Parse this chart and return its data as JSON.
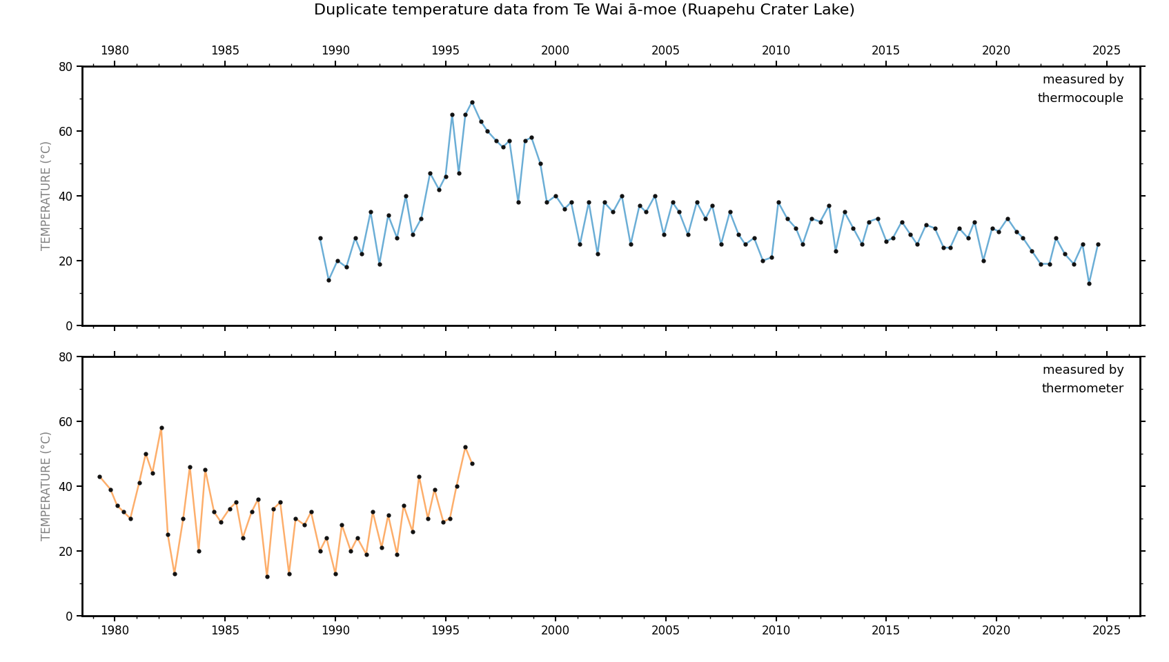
{
  "title": "Duplicate temperature data from Te Wai ā-moe (Ruapehu Crater Lake)",
  "ylabel": "TEMPERATURE (°C)",
  "ylim": [
    0,
    80
  ],
  "yticks": [
    0,
    20,
    40,
    60,
    80
  ],
  "xlim": [
    1978.5,
    2026.5
  ],
  "xticks": [
    1980,
    1985,
    1990,
    1995,
    2000,
    2005,
    2010,
    2015,
    2020,
    2025
  ],
  "tc_color": "#6baed6",
  "th_color": "#fdae6b",
  "dot_color": "#111111",
  "line_width": 1.8,
  "label_tc": "measured by\nthermocouple",
  "label_th": "measured by\nthermometer",
  "tc_years": [
    1989.3,
    1989.7,
    1990.1,
    1990.5,
    1990.9,
    1991.2,
    1991.6,
    1992.0,
    1992.4,
    1992.8,
    1993.2,
    1993.5,
    1993.9,
    1994.3,
    1994.7,
    1995.0,
    1995.3,
    1995.6,
    1995.9,
    1996.2,
    1996.6,
    1996.9,
    1997.3,
    1997.6,
    1997.9,
    1998.3,
    1998.6,
    1998.9,
    1999.3,
    1999.6,
    2000.0,
    2000.4,
    2000.7,
    2001.1,
    2001.5,
    2001.9,
    2002.2,
    2002.6,
    2003.0,
    2003.4,
    2003.8,
    2004.1,
    2004.5,
    2004.9,
    2005.3,
    2005.6,
    2006.0,
    2006.4,
    2006.8,
    2007.1,
    2007.5,
    2007.9,
    2008.3,
    2008.6,
    2009.0,
    2009.4,
    2009.8,
    2010.1,
    2010.5,
    2010.9,
    2011.2,
    2011.6,
    2012.0,
    2012.4,
    2012.7,
    2013.1,
    2013.5,
    2013.9,
    2014.2,
    2014.6,
    2015.0,
    2015.3,
    2015.7,
    2016.1,
    2016.4,
    2016.8,
    2017.2,
    2017.6,
    2017.9,
    2018.3,
    2018.7,
    2019.0,
    2019.4,
    2019.8,
    2020.1,
    2020.5,
    2020.9,
    2021.2,
    2021.6,
    2022.0,
    2022.4,
    2022.7,
    2023.1,
    2023.5,
    2023.9,
    2024.2,
    2024.6
  ],
  "tc_temps": [
    27,
    14,
    20,
    18,
    27,
    22,
    35,
    19,
    34,
    27,
    40,
    28,
    33,
    47,
    42,
    46,
    65,
    47,
    65,
    69,
    63,
    60,
    57,
    55,
    57,
    38,
    57,
    58,
    50,
    38,
    40,
    36,
    38,
    25,
    38,
    22,
    38,
    35,
    40,
    25,
    37,
    35,
    40,
    28,
    38,
    35,
    28,
    38,
    33,
    37,
    25,
    35,
    28,
    25,
    27,
    20,
    21,
    38,
    33,
    30,
    25,
    33,
    32,
    37,
    23,
    35,
    30,
    25,
    32,
    33,
    26,
    27,
    32,
    28,
    25,
    31,
    30,
    24,
    24,
    30,
    27,
    32,
    20,
    30,
    29,
    33,
    29,
    27,
    23,
    19,
    19,
    27,
    22,
    19,
    25,
    13,
    25
  ],
  "th_years": [
    1979.3,
    1979.8,
    1980.1,
    1980.4,
    1980.7,
    1981.1,
    1981.4,
    1981.7,
    1982.1,
    1982.4,
    1982.7,
    1983.1,
    1983.4,
    1983.8,
    1984.1,
    1984.5,
    1984.8,
    1985.2,
    1985.5,
    1985.8,
    1986.2,
    1986.5,
    1986.9,
    1987.2,
    1987.5,
    1987.9,
    1988.2,
    1988.6,
    1988.9,
    1989.3,
    1989.6,
    1990.0,
    1990.3,
    1990.7,
    1991.0,
    1991.4,
    1991.7,
    1992.1,
    1992.4,
    1992.8,
    1993.1,
    1993.5,
    1993.8,
    1994.2,
    1994.5,
    1994.9,
    1995.2,
    1995.5,
    1995.9,
    1996.2
  ],
  "th_temps": [
    43,
    39,
    34,
    32,
    30,
    41,
    50,
    44,
    58,
    25,
    13,
    30,
    46,
    20,
    45,
    32,
    29,
    33,
    35,
    24,
    32,
    36,
    12,
    33,
    35,
    13,
    30,
    28,
    32,
    20,
    24,
    13,
    28,
    20,
    24,
    19,
    32,
    21,
    31,
    19,
    34,
    26,
    43,
    30,
    39,
    29,
    30,
    40,
    52,
    47
  ]
}
